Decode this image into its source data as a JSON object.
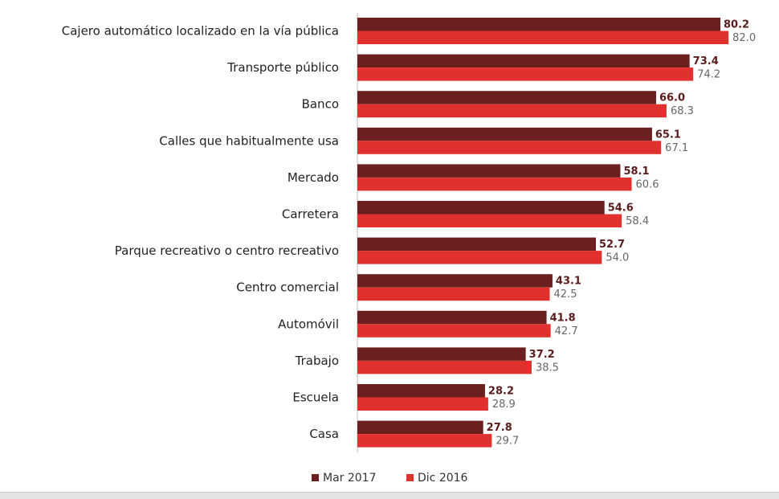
{
  "chart_data": {
    "type": "bar",
    "orientation": "horizontal",
    "title": "",
    "xlabel": "",
    "ylabel": "",
    "xlim": [
      0,
      90
    ],
    "grid": false,
    "legend_position": "bottom",
    "categories": [
      "Cajero automático localizado en la vía pública",
      "Transporte público",
      "Banco",
      "Calles que habitualmente usa",
      "Mercado",
      "Carretera",
      "Parque recreativo o centro recreativo",
      "Centro comercial",
      "Automóvil",
      "Trabajo",
      "Escuela",
      "Casa"
    ],
    "series": [
      {
        "name": "Mar 2017",
        "color": "#6b1f1f",
        "values": [
          80.2,
          73.4,
          66.0,
          65.1,
          58.1,
          54.6,
          52.7,
          43.1,
          41.8,
          37.2,
          28.2,
          27.8
        ]
      },
      {
        "name": "Dic 2016",
        "color": "#e0312f",
        "values": [
          82.0,
          74.2,
          68.3,
          67.1,
          60.6,
          58.4,
          54.0,
          42.5,
          42.7,
          38.5,
          28.9,
          29.7
        ]
      }
    ]
  }
}
